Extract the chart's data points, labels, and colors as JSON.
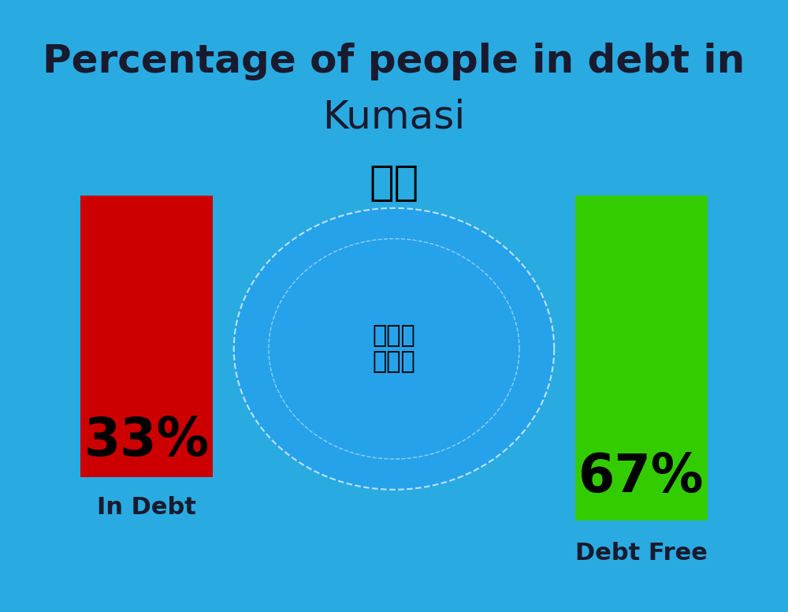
{
  "title_line1": "Percentage of people in debt in",
  "title_line2": "Kumasi",
  "flag_emoji": "🇬🇭",
  "bg_color": "#29ABE2",
  "bar1_value": 33,
  "bar1_label": "In Debt",
  "bar1_color": "#CC0000",
  "bar1_pct": "33%",
  "bar2_value": 67,
  "bar2_label": "Debt Free",
  "bar2_color": "#33CC00",
  "bar2_pct": "67%",
  "title_color": "#1a1a2e",
  "label_color": "#1a1a2e",
  "pct_color": "#000000",
  "title_fontsize": 36,
  "subtitle_fontsize": 36,
  "pct_fontsize": 48,
  "label_fontsize": 22
}
